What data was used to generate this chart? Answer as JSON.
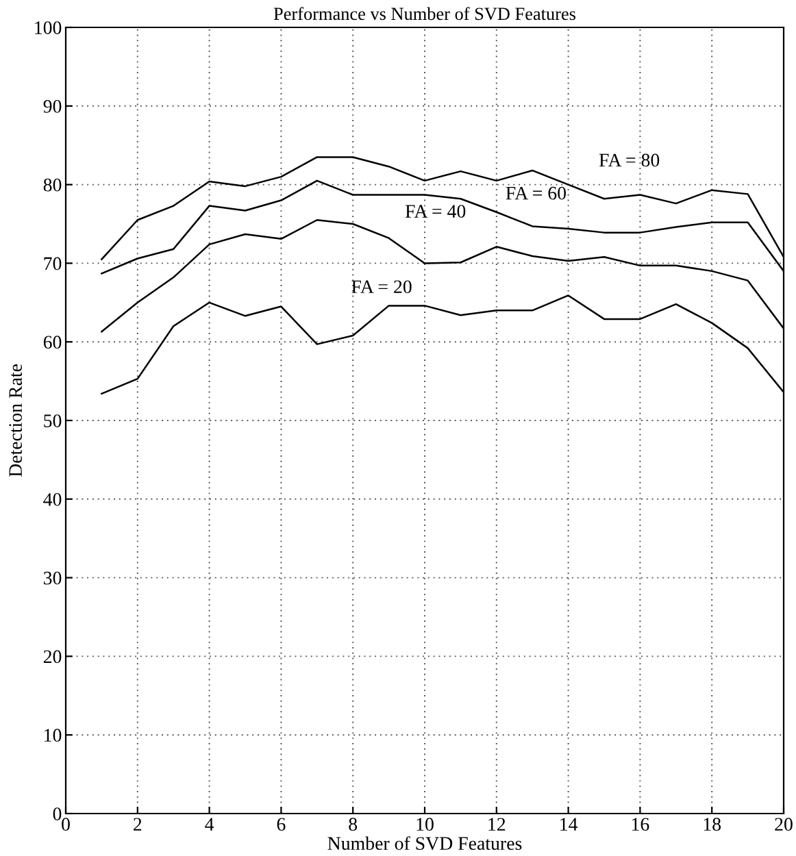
{
  "chart_data": {
    "type": "line",
    "title": "Performance vs Number of SVD Features",
    "xlabel": "Number of SVD Features",
    "ylabel": "Detection Rate",
    "x": [
      1,
      2,
      3,
      4,
      5,
      6,
      7,
      8,
      9,
      10,
      11,
      12,
      13,
      14,
      15,
      16,
      17,
      18,
      19,
      20
    ],
    "series": [
      {
        "color": "#000000",
        "values": [
          70.5,
          75.5,
          77.3,
          80.4,
          79.8,
          81,
          83.5,
          83.5,
          82.3,
          80.5,
          81.7,
          80.5,
          81.8,
          80,
          78.2,
          78.7,
          77.6,
          79.3,
          78.8,
          70.8
        ]
      },
      {
        "color": "#000000",
        "values": [
          68.7,
          70.6,
          71.8,
          77.3,
          76.7,
          78,
          80.5,
          78.7,
          78.7,
          78.7,
          78.2,
          76.5,
          74.7,
          74.4,
          73.9,
          73.9,
          74.6,
          75.2,
          75.2,
          69
        ]
      },
      {
        "color": "#000000",
        "values": [
          61.3,
          65,
          68.2,
          72.4,
          73.7,
          73.1,
          75.5,
          75,
          73.2,
          70,
          70.1,
          72.1,
          70.9,
          70.3,
          70.8,
          69.7,
          69.7,
          69,
          67.8,
          61.7
        ]
      },
      {
        "color": "#000000",
        "values": [
          53.4,
          55.3,
          62,
          65,
          63.3,
          64.5,
          59.7,
          60.8,
          64.6,
          64.6,
          63.4,
          64,
          64,
          65.9,
          62.9,
          62.9,
          64.8,
          62.4,
          59.2,
          53.6
        ]
      }
    ],
    "annotations": [
      "FA = 80",
      "FA = 60",
      "FA = 40",
      "FA = 20"
    ],
    "xlim": [
      0,
      20
    ],
    "ylim": [
      0,
      100
    ],
    "xticks": [
      0,
      2,
      4,
      6,
      8,
      10,
      12,
      14,
      16,
      18,
      20
    ],
    "yticks": [
      0,
      10,
      20,
      30,
      40,
      50,
      60,
      70,
      80,
      90,
      100
    ],
    "grid": true,
    "line_style": "solid",
    "marker": "none"
  }
}
